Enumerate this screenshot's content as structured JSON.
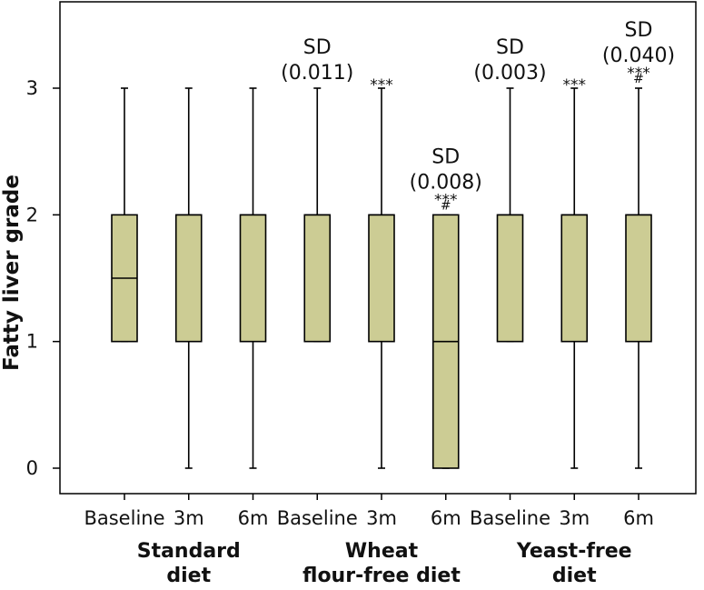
{
  "chart_data": {
    "type": "boxplot",
    "title": "",
    "xlabel": "",
    "ylabel": "Fatty liver grade",
    "ylim": [
      -0.2,
      3.55
    ],
    "yticks": [
      0,
      1,
      2,
      3
    ],
    "grid": false,
    "box_color": "#cccc94",
    "categories": [
      "Baseline",
      "3m",
      "6m",
      "Baseline",
      "3m",
      "6m",
      "Baseline",
      "3m",
      "6m"
    ],
    "groups": [
      {
        "label_line1": "Standard",
        "label_line2": "diet"
      },
      {
        "label_line1": "Wheat",
        "label_line2": "flour-free diet"
      },
      {
        "label_line1": "Yeast-free",
        "label_line2": "diet"
      }
    ],
    "boxes": [
      {
        "group": 0,
        "category": "Baseline",
        "min": 1,
        "q1": 1,
        "median": 1.5,
        "q3": 2,
        "max": 3,
        "sd": "",
        "sig": "",
        "hash": ""
      },
      {
        "group": 0,
        "category": "3m",
        "min": 0,
        "q1": 1,
        "median": 2,
        "q3": 2,
        "max": 3,
        "sd": "",
        "sig": "",
        "hash": ""
      },
      {
        "group": 0,
        "category": "6m",
        "min": 0,
        "q1": 1,
        "median": 2,
        "q3": 2,
        "max": 3,
        "sd": "",
        "sig": "",
        "hash": ""
      },
      {
        "group": 1,
        "category": "Baseline",
        "min": 1,
        "q1": 1,
        "median": 2,
        "q3": 2,
        "max": 3,
        "sd": "(0.011)",
        "sig": "",
        "hash": ""
      },
      {
        "group": 1,
        "category": "3m",
        "min": 0,
        "q1": 1,
        "median": 2,
        "q3": 2,
        "max": 3,
        "sd": "",
        "sig": "***",
        "hash": ""
      },
      {
        "group": 1,
        "category": "6m",
        "min": 0,
        "q1": 0,
        "median": 1,
        "q3": 2,
        "max": 2,
        "sd": "(0.008)",
        "sig": "***",
        "hash": "#"
      },
      {
        "group": 2,
        "category": "Baseline",
        "min": 1,
        "q1": 1,
        "median": 2,
        "q3": 2,
        "max": 3,
        "sd": "(0.003)",
        "sig": "",
        "hash": ""
      },
      {
        "group": 2,
        "category": "3m",
        "min": 0,
        "q1": 1,
        "median": 2,
        "q3": 2,
        "max": 3,
        "sd": "",
        "sig": "***",
        "hash": ""
      },
      {
        "group": 2,
        "category": "6m",
        "min": 0,
        "q1": 1,
        "median": 2,
        "q3": 2,
        "max": 3,
        "sd": "(0.040)",
        "sig": "***",
        "hash": "#"
      }
    ],
    "sd_label": "SD"
  }
}
